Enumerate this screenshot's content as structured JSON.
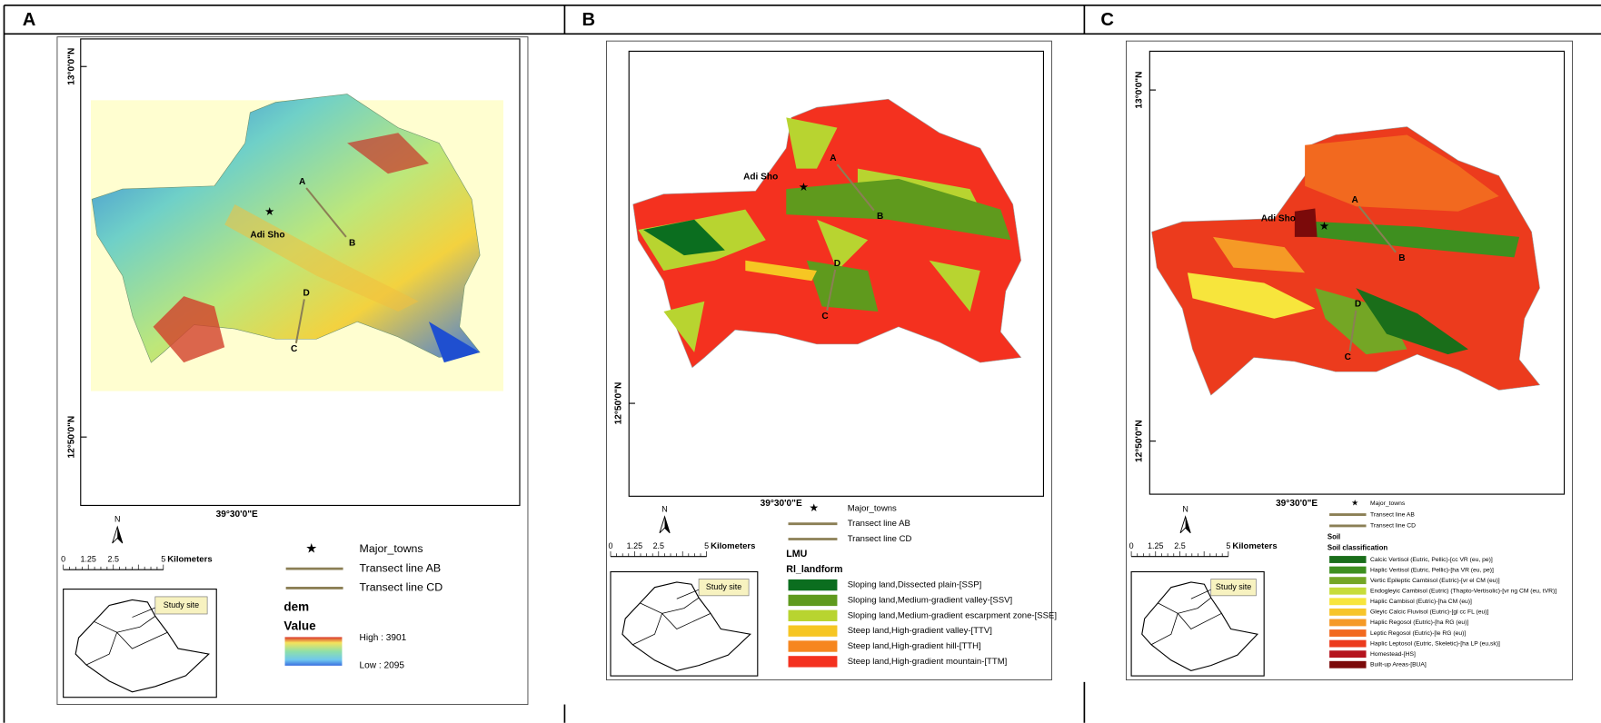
{
  "panels": [
    {
      "label": "A",
      "lat_labels": [
        "13°0'0\"N",
        "12°50'0\"N"
      ],
      "lon_label": "39°30'0\"E",
      "town": "Adi Sho",
      "transect_points": [
        "A",
        "B",
        "C",
        "D"
      ],
      "north": "N",
      "scale_ticks": [
        "0",
        "1.25",
        "2.5",
        "5"
      ],
      "scale_unit": "Kilometers",
      "inset_label": "Study site",
      "legend": {
        "towns": "Major_towns",
        "transect_ab": "Transect line AB",
        "transect_cd": "Transect line CD",
        "title": "dem",
        "subtitle": "Value",
        "high": "High : 3901",
        "low": "Low : 2095"
      }
    },
    {
      "label": "B",
      "lat_labels": [
        "12°50'0\"N"
      ],
      "lon_label": "39°30'0\"E",
      "town": "Adi Sho",
      "transect_points": [
        "A",
        "B",
        "C",
        "D"
      ],
      "north": "N",
      "scale_ticks": [
        "0",
        "1.25",
        "2.5",
        "5"
      ],
      "scale_unit": "Kilometers",
      "inset_label": "Study site",
      "legend": {
        "towns": "Major_towns",
        "transect_ab": "Transect line AB",
        "transect_cd": "Transect line CD",
        "title": "LMU",
        "subtitle": "Rl_landform",
        "items": [
          {
            "label": "Sloping land,Dissected plain-[SSP]",
            "color": "#0b6e1f"
          },
          {
            "label": "Sloping land,Medium-gradient valley-[SSV]",
            "color": "#5f9a1d"
          },
          {
            "label": "Sloping land,Medium-gradient escarpment zone-[SSE]",
            "color": "#b8d430"
          },
          {
            "label": "Steep land,High-gradient valley-[TTV]",
            "color": "#f6c623"
          },
          {
            "label": "Steep land,High-gradient hill-[TTH]",
            "color": "#f6861f"
          },
          {
            "label": "Steep land,High-gradient mountain-[TTM]",
            "color": "#f4311f"
          }
        ]
      }
    },
    {
      "label": "C",
      "lat_labels": [
        "13°0'0\"N",
        "12°50'0\"N"
      ],
      "lon_label": "39°30'0\"E",
      "town": "Adi Sho",
      "transect_points": [
        "A",
        "B",
        "C",
        "D"
      ],
      "north": "N",
      "scale_ticks": [
        "0",
        "1.25",
        "2.5",
        "5"
      ],
      "scale_unit": "Kilometers",
      "inset_label": "Study site",
      "legend": {
        "towns": "Major_towns",
        "transect_ab": "Transect line AB",
        "transect_cd": "Transect line CD",
        "title": "Soil",
        "subtitle": "Soil classification",
        "items": [
          {
            "label": "Calcic Vertisol (Eutric, Pellic)-[cc VR (eu, pe)]",
            "color": "#1a6e1a"
          },
          {
            "label": "Haplic Vertisol (Eutric, Pellic)-[ha VR (eu, pe)]",
            "color": "#3e8f1f"
          },
          {
            "label": "Vertic Epileptic Cambisol (Eutric)-[vr el CM (eu)]",
            "color": "#74a625"
          },
          {
            "label": "Endogleyic Cambisol (Eutric) (Thapto-Vertisolic)-[vr ng CM (eu, tVR)]",
            "color": "#c7dc3a"
          },
          {
            "label": "Haplic Cambisol (Eutric)-[ha CM (eu)]",
            "color": "#f7e53c"
          },
          {
            "label": "Gleyic Calcic Fluvisol (Eutric)-[gl cc FL (eu)]",
            "color": "#f7c52a"
          },
          {
            "label": "Haplic Regosol (Eutric)-[ha RG (eu)]",
            "color": "#f59a26"
          },
          {
            "label": "Leptic Regosol (Eutric)-[le RG (eu)]",
            "color": "#f2691f"
          },
          {
            "label": "Haplic Leptosol (Eutric, Skeletic)-[ha LP (eu,sk)]",
            "color": "#ec3b1d"
          },
          {
            "label": "Homestead-[HS]",
            "color": "#b5141e"
          },
          {
            "label": "Built-up Areas-[BUA]",
            "color": "#7b0a0a"
          }
        ]
      }
    }
  ]
}
